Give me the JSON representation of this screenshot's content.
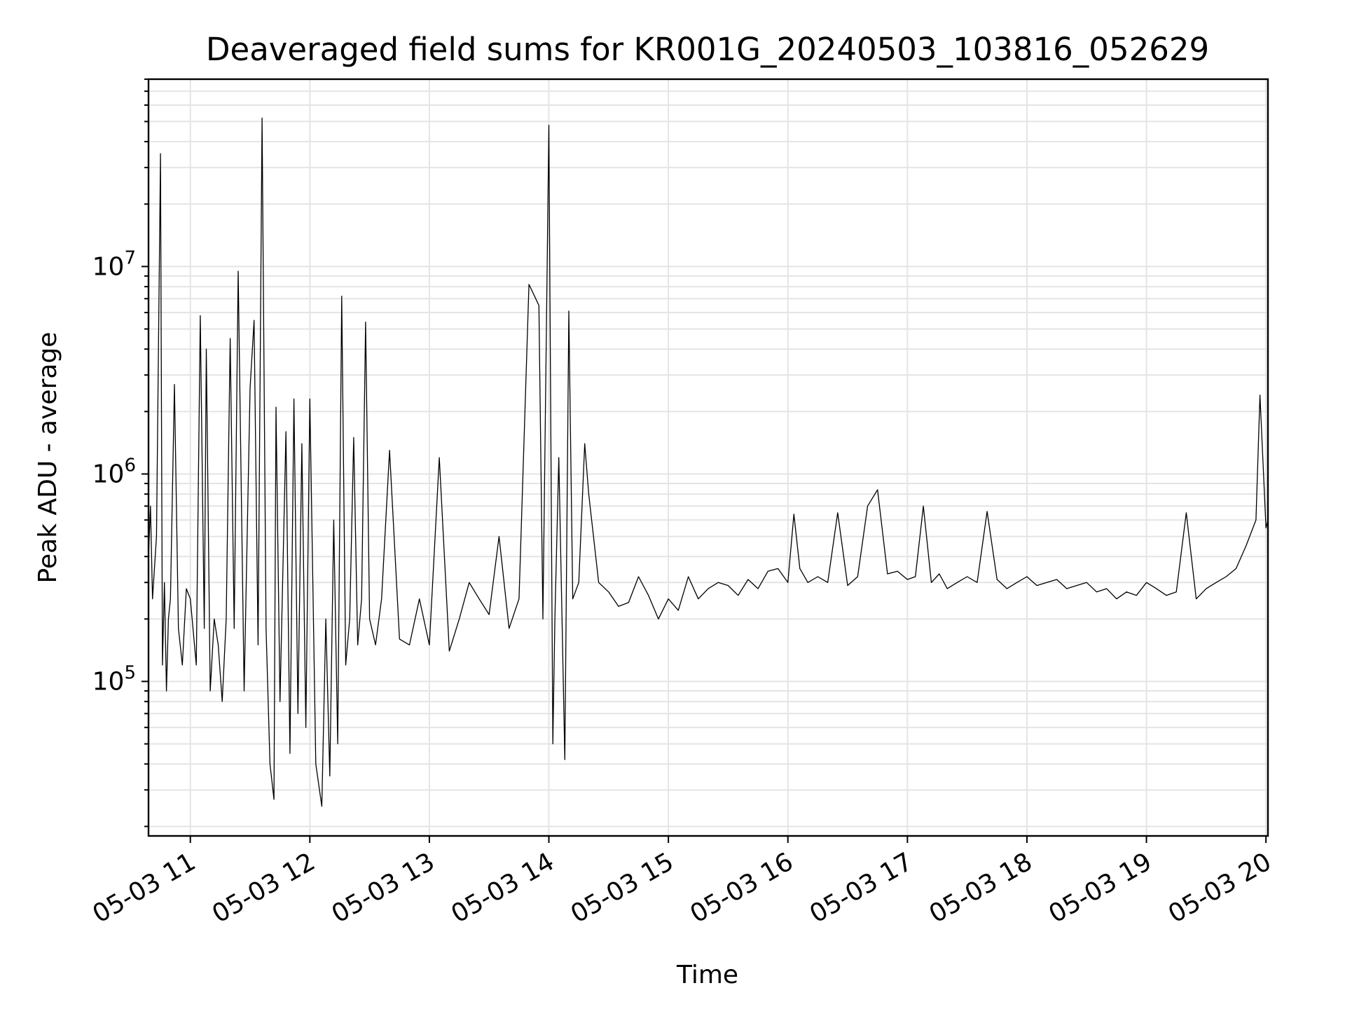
{
  "chart_data": {
    "type": "line",
    "title": "Deaveraged field sums for KR001G_20240503_103816_052629",
    "xlabel": "Time",
    "ylabel": "Peak ADU - average",
    "x_scale": "time",
    "y_scale": "log",
    "xlim": [
      "2024-05-03 10:39",
      "2024-05-03 20:01"
    ],
    "ylim": [
      18000,
      80000000
    ],
    "grid": true,
    "grid_minor": true,
    "colors": {
      "series": "#000000",
      "grid": "#e4e4e4"
    },
    "xticks": [
      "2024-05-03 11:00",
      "2024-05-03 12:00",
      "2024-05-03 13:00",
      "2024-05-03 14:00",
      "2024-05-03 15:00",
      "2024-05-03 16:00",
      "2024-05-03 17:00",
      "2024-05-03 18:00",
      "2024-05-03 19:00",
      "2024-05-03 20:00"
    ],
    "xtick_labels": [
      "05-03 11",
      "05-03 12",
      "05-03 13",
      "05-03 14",
      "05-03 15",
      "05-03 16",
      "05-03 17",
      "05-03 18",
      "05-03 19",
      "05-03 20"
    ],
    "yticks": [
      {
        "value": 100000,
        "base": "10",
        "exp": "5"
      },
      {
        "value": 1000000,
        "base": "10",
        "exp": "6"
      },
      {
        "value": 10000000,
        "base": "10",
        "exp": "7"
      }
    ],
    "series": [
      {
        "x": [
          "2024-05-03 10:39",
          "2024-05-03 10:40",
          "2024-05-03 10:41",
          "2024-05-03 10:43",
          "2024-05-03 10:45",
          "2024-05-03 10:46",
          "2024-05-03 10:47",
          "2024-05-03 10:48",
          "2024-05-03 10:49",
          "2024-05-03 10:50",
          "2024-05-03 10:52",
          "2024-05-03 10:54",
          "2024-05-03 10:56",
          "2024-05-03 10:58",
          "2024-05-03 11:00",
          "2024-05-03 11:03",
          "2024-05-03 11:05",
          "2024-05-03 11:07",
          "2024-05-03 11:08",
          "2024-05-03 11:10",
          "2024-05-03 11:12",
          "2024-05-03 11:14",
          "2024-05-03 11:16",
          "2024-05-03 11:18",
          "2024-05-03 11:20",
          "2024-05-03 11:22",
          "2024-05-03 11:24",
          "2024-05-03 11:27",
          "2024-05-03 11:30",
          "2024-05-03 11:32",
          "2024-05-03 11:34",
          "2024-05-03 11:36",
          "2024-05-03 11:38",
          "2024-05-03 11:40",
          "2024-05-03 11:42",
          "2024-05-03 11:43",
          "2024-05-03 11:45",
          "2024-05-03 11:48",
          "2024-05-03 11:50",
          "2024-05-03 11:52",
          "2024-05-03 11:54",
          "2024-05-03 11:56",
          "2024-05-03 11:58",
          "2024-05-03 12:00",
          "2024-05-03 12:03",
          "2024-05-03 12:06",
          "2024-05-03 12:08",
          "2024-05-03 12:10",
          "2024-05-03 12:12",
          "2024-05-03 12:14",
          "2024-05-03 12:16",
          "2024-05-03 12:18",
          "2024-05-03 12:20",
          "2024-05-03 12:22",
          "2024-05-03 12:24",
          "2024-05-03 12:26",
          "2024-05-03 12:28",
          "2024-05-03 12:30",
          "2024-05-03 12:33",
          "2024-05-03 12:36",
          "2024-05-03 12:40",
          "2024-05-03 12:45",
          "2024-05-03 12:50",
          "2024-05-03 12:55",
          "2024-05-03 13:00",
          "2024-05-03 13:05",
          "2024-05-03 13:10",
          "2024-05-03 13:15",
          "2024-05-03 13:20",
          "2024-05-03 13:25",
          "2024-05-03 13:30",
          "2024-05-03 13:35",
          "2024-05-03 13:40",
          "2024-05-03 13:45",
          "2024-05-03 13:50",
          "2024-05-03 13:55",
          "2024-05-03 13:57",
          "2024-05-03 14:00",
          "2024-05-03 14:02",
          "2024-05-03 14:03",
          "2024-05-03 14:05",
          "2024-05-03 14:08",
          "2024-05-03 14:10",
          "2024-05-03 14:12",
          "2024-05-03 14:15",
          "2024-05-03 14:18",
          "2024-05-03 14:20",
          "2024-05-03 14:25",
          "2024-05-03 14:30",
          "2024-05-03 14:35",
          "2024-05-03 14:40",
          "2024-05-03 14:45",
          "2024-05-03 14:50",
          "2024-05-03 14:55",
          "2024-05-03 15:00",
          "2024-05-03 15:05",
          "2024-05-03 15:10",
          "2024-05-03 15:15",
          "2024-05-03 15:20",
          "2024-05-03 15:25",
          "2024-05-03 15:30",
          "2024-05-03 15:35",
          "2024-05-03 15:40",
          "2024-05-03 15:45",
          "2024-05-03 15:50",
          "2024-05-03 15:55",
          "2024-05-03 16:00",
          "2024-05-03 16:03",
          "2024-05-03 16:06",
          "2024-05-03 16:10",
          "2024-05-03 16:15",
          "2024-05-03 16:20",
          "2024-05-03 16:25",
          "2024-05-03 16:30",
          "2024-05-03 16:35",
          "2024-05-03 16:40",
          "2024-05-03 16:45",
          "2024-05-03 16:50",
          "2024-05-03 16:55",
          "2024-05-03 17:00",
          "2024-05-03 17:04",
          "2024-05-03 17:08",
          "2024-05-03 17:12",
          "2024-05-03 17:16",
          "2024-05-03 17:20",
          "2024-05-03 17:25",
          "2024-05-03 17:30",
          "2024-05-03 17:35",
          "2024-05-03 17:40",
          "2024-05-03 17:45",
          "2024-05-03 17:50",
          "2024-05-03 17:55",
          "2024-05-03 18:00",
          "2024-05-03 18:05",
          "2024-05-03 18:10",
          "2024-05-03 18:15",
          "2024-05-03 18:20",
          "2024-05-03 18:25",
          "2024-05-03 18:30",
          "2024-05-03 18:35",
          "2024-05-03 18:40",
          "2024-05-03 18:45",
          "2024-05-03 18:50",
          "2024-05-03 18:55",
          "2024-05-03 19:00",
          "2024-05-03 19:05",
          "2024-05-03 19:10",
          "2024-05-03 19:15",
          "2024-05-03 19:20",
          "2024-05-03 19:25",
          "2024-05-03 19:30",
          "2024-05-03 19:35",
          "2024-05-03 19:40",
          "2024-05-03 19:45",
          "2024-05-03 19:50",
          "2024-05-03 19:55",
          "2024-05-03 19:57",
          "2024-05-03 20:00",
          "2024-05-03 20:01"
        ],
        "y": [
          400000,
          700000,
          250000,
          500000,
          35000000,
          120000,
          300000,
          90000,
          200000,
          250000,
          2700000,
          180000,
          120000,
          280000,
          250000,
          120000,
          5800000,
          180000,
          4000000,
          90000,
          200000,
          150000,
          80000,
          200000,
          4500000,
          180000,
          9500000,
          90000,
          2600000,
          5500000,
          150000,
          52000000,
          180000,
          40000,
          27000,
          2100000,
          80000,
          1600000,
          45000,
          2300000,
          70000,
          1400000,
          60000,
          2300000,
          40000,
          25000,
          200000,
          35000,
          600000,
          50000,
          7200000,
          120000,
          200000,
          1500000,
          150000,
          250000,
          5400000,
          200000,
          150000,
          250000,
          1300000,
          160000,
          150000,
          250000,
          150000,
          1200000,
          140000,
          200000,
          300000,
          250000,
          210000,
          500000,
          180000,
          250000,
          8200000,
          6500000,
          200000,
          48000000,
          50000,
          200000,
          1200000,
          42000,
          6100000,
          250000,
          300000,
          1400000,
          800000,
          300000,
          270000,
          230000,
          240000,
          320000,
          260000,
          200000,
          250000,
          220000,
          320000,
          250000,
          280000,
          300000,
          290000,
          260000,
          310000,
          280000,
          340000,
          350000,
          300000,
          640000,
          350000,
          300000,
          320000,
          300000,
          650000,
          290000,
          320000,
          700000,
          840000,
          330000,
          340000,
          310000,
          320000,
          700000,
          300000,
          330000,
          280000,
          300000,
          320000,
          300000,
          660000,
          310000,
          280000,
          300000,
          320000,
          290000,
          300000,
          310000,
          280000,
          290000,
          300000,
          270000,
          280000,
          250000,
          270000,
          260000,
          300000,
          280000,
          260000,
          270000,
          650000,
          250000,
          280000,
          300000,
          320000,
          350000,
          450000,
          600000,
          2400000,
          550000,
          600000
        ]
      }
    ]
  }
}
